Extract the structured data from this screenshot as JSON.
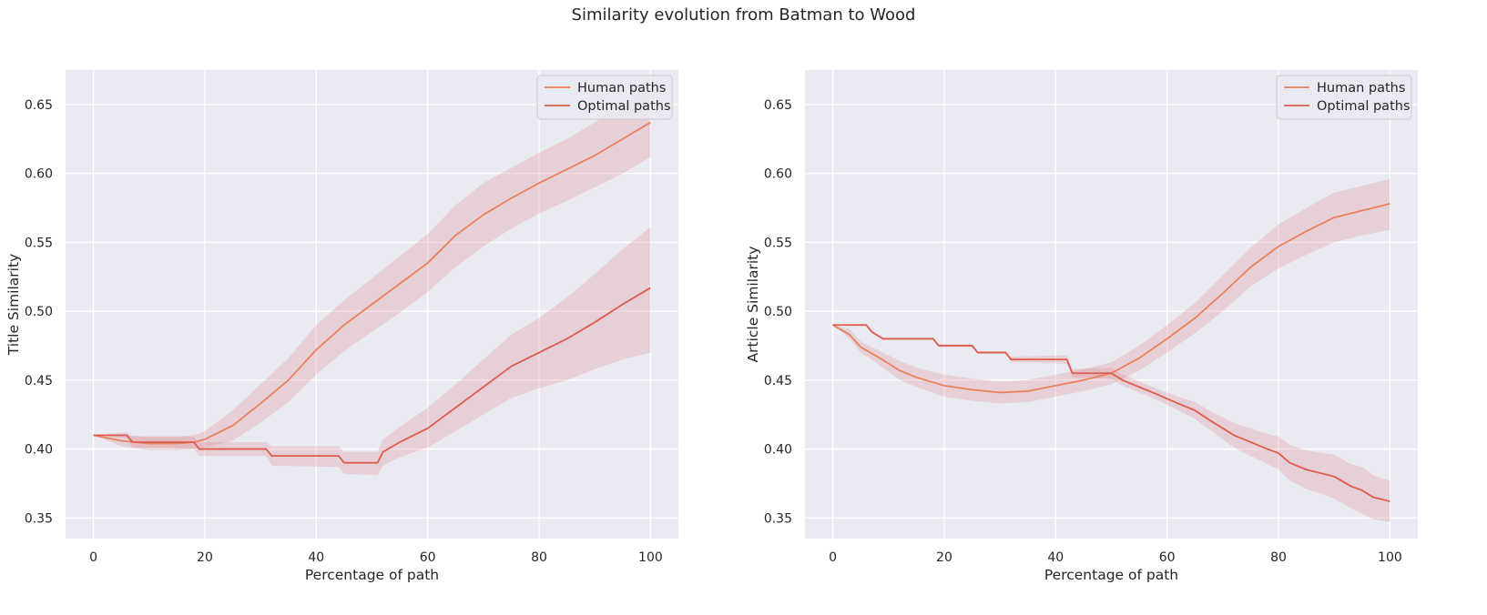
{
  "figure": {
    "suptitle": "Similarity evolution from Batman to Wood"
  },
  "colors": {
    "human": "#e9825c",
    "optimal": "#de5d4e",
    "band": "#dc7f83",
    "axes_bg": "#eaeaf2",
    "grid": "#ffffff"
  },
  "chart_data": [
    {
      "type": "line",
      "title": "",
      "xlabel": "Percentage of path",
      "ylabel": "Title Similarity",
      "xlim": [
        -5,
        105
      ],
      "ylim": [
        0.335,
        0.675
      ],
      "xticks": [
        0,
        20,
        40,
        60,
        80,
        100
      ],
      "yticks": [
        0.35,
        0.4,
        0.45,
        0.5,
        0.55,
        0.6,
        0.65
      ],
      "grid": true,
      "legend": "upper-right",
      "series": [
        {
          "name": "Human paths",
          "x": [
            0,
            5,
            10,
            15,
            18,
            20,
            25,
            30,
            35,
            40,
            45,
            50,
            55,
            60,
            65,
            70,
            75,
            80,
            85,
            90,
            95,
            100
          ],
          "y": [
            0.41,
            0.406,
            0.404,
            0.404,
            0.405,
            0.407,
            0.417,
            0.433,
            0.45,
            0.472,
            0.49,
            0.505,
            0.52,
            0.535,
            0.555,
            0.57,
            0.582,
            0.593,
            0.603,
            0.613,
            0.625,
            0.637
          ],
          "ci_low": [
            0.41,
            0.402,
            0.399,
            0.399,
            0.4,
            0.401,
            0.406,
            0.419,
            0.434,
            0.454,
            0.471,
            0.485,
            0.499,
            0.514,
            0.532,
            0.547,
            0.56,
            0.571,
            0.58,
            0.59,
            0.6,
            0.612
          ],
          "ci_high": [
            0.41,
            0.41,
            0.409,
            0.409,
            0.41,
            0.413,
            0.428,
            0.447,
            0.466,
            0.49,
            0.508,
            0.524,
            0.54,
            0.556,
            0.577,
            0.593,
            0.604,
            0.615,
            0.625,
            0.637,
            0.65,
            0.662
          ]
        },
        {
          "name": "Optimal paths",
          "x": [
            0,
            6,
            7,
            12,
            18,
            19,
            31,
            32,
            44,
            45,
            51,
            52,
            55,
            60,
            65,
            70,
            75,
            80,
            85,
            90,
            95,
            100
          ],
          "y": [
            0.41,
            0.41,
            0.405,
            0.405,
            0.405,
            0.4,
            0.4,
            0.395,
            0.395,
            0.39,
            0.39,
            0.398,
            0.405,
            0.415,
            0.43,
            0.445,
            0.46,
            0.47,
            0.48,
            0.492,
            0.505,
            0.517
          ],
          "ci_low": [
            0.41,
            0.408,
            0.401,
            0.401,
            0.4,
            0.395,
            0.395,
            0.388,
            0.387,
            0.382,
            0.381,
            0.388,
            0.394,
            0.401,
            0.413,
            0.425,
            0.437,
            0.444,
            0.45,
            0.458,
            0.465,
            0.47
          ],
          "ci_high": [
            0.41,
            0.412,
            0.409,
            0.409,
            0.409,
            0.405,
            0.405,
            0.402,
            0.402,
            0.398,
            0.398,
            0.407,
            0.416,
            0.43,
            0.447,
            0.465,
            0.483,
            0.495,
            0.51,
            0.527,
            0.545,
            0.561
          ]
        }
      ]
    },
    {
      "type": "line",
      "title": "",
      "xlabel": "Percentage of path",
      "ylabel": "Article Similarity",
      "xlim": [
        -5,
        105
      ],
      "ylim": [
        0.335,
        0.675
      ],
      "xticks": [
        0,
        20,
        40,
        60,
        80,
        100
      ],
      "yticks": [
        0.35,
        0.4,
        0.45,
        0.5,
        0.55,
        0.6,
        0.65
      ],
      "grid": true,
      "legend": "upper-right",
      "series": [
        {
          "name": "Human paths",
          "x": [
            0,
            3,
            5,
            8,
            10,
            12,
            15,
            20,
            25,
            30,
            35,
            40,
            45,
            50,
            55,
            60,
            65,
            70,
            75,
            80,
            85,
            90,
            95,
            100
          ],
          "y": [
            0.49,
            0.483,
            0.474,
            0.467,
            0.462,
            0.457,
            0.452,
            0.446,
            0.443,
            0.441,
            0.442,
            0.446,
            0.45,
            0.455,
            0.466,
            0.48,
            0.495,
            0.513,
            0.532,
            0.547,
            0.558,
            0.568,
            0.573,
            0.578
          ],
          "ci_low": [
            0.49,
            0.48,
            0.47,
            0.462,
            0.456,
            0.45,
            0.445,
            0.438,
            0.435,
            0.433,
            0.434,
            0.438,
            0.442,
            0.447,
            0.457,
            0.47,
            0.484,
            0.5,
            0.518,
            0.531,
            0.541,
            0.55,
            0.555,
            0.559
          ],
          "ci_high": [
            0.49,
            0.487,
            0.478,
            0.472,
            0.468,
            0.464,
            0.459,
            0.454,
            0.451,
            0.449,
            0.45,
            0.454,
            0.458,
            0.463,
            0.475,
            0.49,
            0.506,
            0.526,
            0.546,
            0.563,
            0.575,
            0.586,
            0.591,
            0.596
          ]
        },
        {
          "name": "Optimal paths",
          "x": [
            0,
            6,
            7,
            9,
            18,
            19,
            25,
            26,
            31,
            32,
            42,
            43,
            50,
            52,
            55,
            58,
            62,
            65,
            68,
            70,
            72,
            75,
            78,
            80,
            82,
            85,
            88,
            90,
            93,
            95,
            97,
            100
          ],
          "y": [
            0.49,
            0.49,
            0.485,
            0.48,
            0.48,
            0.475,
            0.475,
            0.47,
            0.47,
            0.465,
            0.465,
            0.455,
            0.455,
            0.45,
            0.445,
            0.44,
            0.433,
            0.428,
            0.42,
            0.415,
            0.41,
            0.405,
            0.4,
            0.397,
            0.39,
            0.385,
            0.382,
            0.38,
            0.373,
            0.37,
            0.365,
            0.362
          ],
          "ci_low": [
            0.49,
            0.489,
            0.484,
            0.479,
            0.479,
            0.474,
            0.474,
            0.469,
            0.469,
            0.463,
            0.462,
            0.452,
            0.451,
            0.446,
            0.441,
            0.436,
            0.428,
            0.422,
            0.413,
            0.407,
            0.401,
            0.395,
            0.389,
            0.385,
            0.377,
            0.371,
            0.367,
            0.364,
            0.357,
            0.353,
            0.349,
            0.347
          ],
          "ci_high": [
            0.49,
            0.491,
            0.486,
            0.481,
            0.481,
            0.476,
            0.476,
            0.471,
            0.471,
            0.467,
            0.468,
            0.458,
            0.459,
            0.454,
            0.449,
            0.444,
            0.438,
            0.434,
            0.427,
            0.423,
            0.419,
            0.415,
            0.411,
            0.409,
            0.403,
            0.399,
            0.397,
            0.396,
            0.389,
            0.387,
            0.381,
            0.377
          ]
        }
      ]
    }
  ]
}
